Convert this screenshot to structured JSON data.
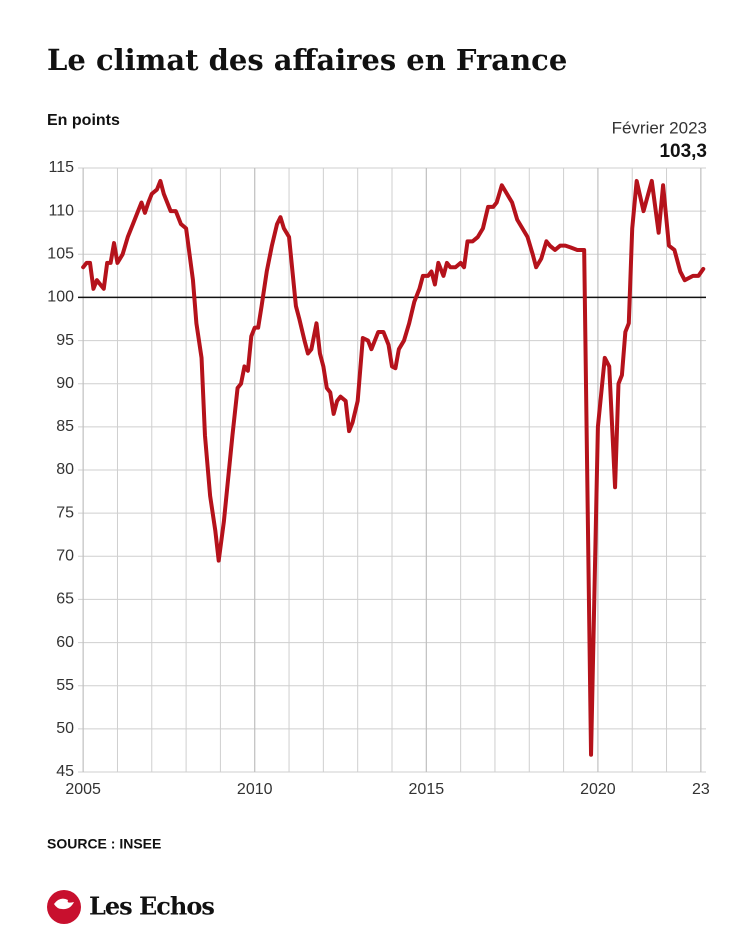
{
  "chart_data": {
    "type": "line",
    "title": "Le climat des affaires en France",
    "subtitle": "En points",
    "annotation": {
      "label": "Février 2023",
      "value": 103.3,
      "value_label": "103,3"
    },
    "source": "SOURCE : INSEE",
    "brand": "Les Echos",
    "color": "#b5121b",
    "reference_line": 100,
    "grid": true,
    "xlim": [
      2004.85,
      2023.15
    ],
    "xticks": [
      2005,
      2010,
      2015,
      2020,
      {
        "value": 2023,
        "label": "23"
      }
    ],
    "ylim": [
      45,
      115
    ],
    "yticks": [
      45,
      50,
      55,
      60,
      65,
      70,
      75,
      80,
      85,
      90,
      95,
      100,
      105,
      110,
      115
    ],
    "x": [
      2005.0,
      2005.1,
      2005.2,
      2005.3,
      2005.4,
      2005.5,
      2005.6,
      2005.7,
      2005.8,
      2005.9,
      2006.0,
      2006.15,
      2006.3,
      2006.45,
      2006.6,
      2006.7,
      2006.8,
      2006.9,
      2007.0,
      2007.15,
      2007.25,
      2007.35,
      2007.45,
      2007.55,
      2007.7,
      2007.85,
      2008.0,
      2008.1,
      2008.2,
      2008.3,
      2008.45,
      2008.55,
      2008.7,
      2008.85,
      2008.95,
      2009.1,
      2009.2,
      2009.35,
      2009.5,
      2009.6,
      2009.7,
      2009.8,
      2009.9,
      2010.0,
      2010.1,
      2010.2,
      2010.35,
      2010.5,
      2010.65,
      2010.75,
      2010.85,
      2011.0,
      2011.1,
      2011.2,
      2011.3,
      2011.45,
      2011.55,
      2011.65,
      2011.8,
      2011.9,
      2012.0,
      2012.1,
      2012.2,
      2012.3,
      2012.4,
      2012.5,
      2012.65,
      2012.75,
      2012.85,
      2013.0,
      2013.15,
      2013.3,
      2013.4,
      2013.5,
      2013.6,
      2013.75,
      2013.9,
      2014.0,
      2014.1,
      2014.2,
      2014.35,
      2014.5,
      2014.65,
      2014.8,
      2014.9,
      2015.05,
      2015.15,
      2015.25,
      2015.35,
      2015.5,
      2015.6,
      2015.7,
      2015.85,
      2016.0,
      2016.1,
      2016.2,
      2016.35,
      2016.5,
      2016.65,
      2016.8,
      2016.95,
      2017.05,
      2017.2,
      2017.35,
      2017.5,
      2017.65,
      2017.8,
      2017.95,
      2018.1,
      2018.2,
      2018.35,
      2018.5,
      2018.6,
      2018.75,
      2018.9,
      2019.05,
      2019.2,
      2019.4,
      2019.6,
      2019.8,
      2020.0,
      2020.2,
      2020.33,
      2020.5,
      2020.6,
      2020.7,
      2020.8,
      2020.9,
      2021.0,
      2021.13,
      2021.33,
      2021.57,
      2021.77,
      2021.9,
      2022.07,
      2022.23,
      2022.4,
      2022.53,
      2022.77,
      2022.93,
      2023.07
    ],
    "values": [
      103.5,
      104,
      104,
      101,
      102,
      101.5,
      101,
      104,
      104,
      106.3,
      104,
      105,
      107,
      108.5,
      110,
      111,
      109.8,
      111,
      112,
      112.5,
      113.5,
      112,
      111,
      110,
      110,
      108.5,
      108,
      105,
      102,
      97,
      93,
      84,
      77,
      73,
      69.5,
      74,
      78,
      84,
      89.5,
      90,
      92,
      91.5,
      95.5,
      96.5,
      96.5,
      99,
      103,
      106,
      108.5,
      109.3,
      108,
      107,
      103,
      99,
      97.5,
      95,
      93.5,
      94,
      97,
      93.5,
      92,
      89.5,
      89,
      86.5,
      88,
      88.5,
      88,
      84.5,
      85.5,
      88,
      95.3,
      95,
      94,
      95,
      96,
      96,
      94.5,
      92,
      91.8,
      94,
      95,
      97,
      99.5,
      101,
      102.5,
      102.5,
      103,
      101.5,
      104,
      102.5,
      104,
      103.5,
      103.5,
      104,
      103.5,
      106.5,
      106.5,
      107,
      108,
      110.5,
      110.5,
      111,
      113,
      112,
      111,
      109,
      108,
      107,
      105,
      103.5,
      104.5,
      106.5,
      106,
      105.5,
      106,
      106,
      105.8,
      105.5,
      105.5,
      47,
      85,
      93,
      92,
      78,
      90,
      91,
      96,
      97,
      108,
      113.5,
      110,
      113.5,
      107.5,
      113,
      106,
      105.5,
      103,
      102,
      102.5,
      102.5,
      103.3
    ]
  }
}
